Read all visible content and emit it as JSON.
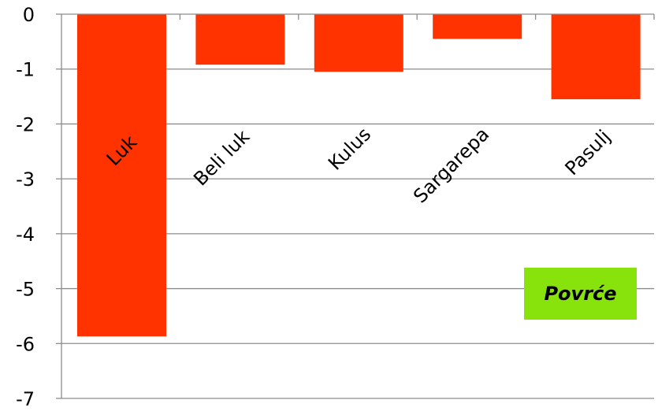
{
  "chart_data": {
    "type": "bar",
    "categories": [
      "Luk",
      "Beli luk",
      "Kulus",
      "Sargarepa",
      "Pasulj"
    ],
    "values": [
      -5.87,
      -0.92,
      -1.05,
      -0.45,
      -1.55
    ],
    "ylim": [
      -7,
      0
    ],
    "yticks": [
      {
        "value": 0,
        "label": "0"
      },
      {
        "value": -1,
        "label": "-1"
      },
      {
        "value": -2,
        "label": "-2"
      },
      {
        "value": -3,
        "label": "-3"
      },
      {
        "value": -4,
        "label": "-4"
      },
      {
        "value": -5,
        "label": "-5"
      },
      {
        "value": -6,
        "label": "-6"
      },
      {
        "value": -7,
        "label": "-7"
      }
    ],
    "grid": true,
    "bar_color": "#ff3300",
    "legend": {
      "label": "Povrće",
      "color": "#88e20c",
      "position": "right"
    }
  }
}
